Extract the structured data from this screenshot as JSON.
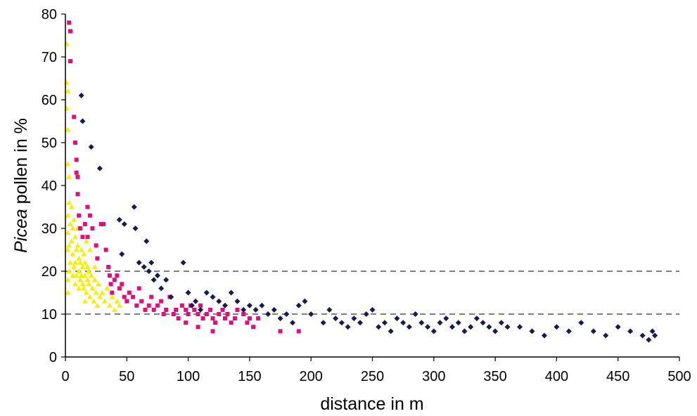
{
  "chart_data": {
    "type": "scatter",
    "xlabel": "distance in m",
    "ylabel_italic": "Picea",
    "ylabel_rest": " pollen in %",
    "xlim": [
      0,
      500
    ],
    "ylim": [
      0,
      80
    ],
    "x_ticks": [
      0,
      50,
      100,
      150,
      200,
      250,
      300,
      350,
      400,
      450,
      500
    ],
    "y_ticks": [
      0,
      10,
      20,
      30,
      40,
      50,
      60,
      70,
      80
    ],
    "reference_lines": [
      10,
      20
    ],
    "grid": false,
    "legend": "none",
    "series": [
      {
        "marker": "triangle",
        "color": "#f5f000",
        "points": [
          [
            1,
            73
          ],
          [
            1,
            64
          ],
          [
            2,
            62
          ],
          [
            1,
            58
          ],
          [
            2,
            53
          ],
          [
            2,
            45
          ],
          [
            3,
            42
          ],
          [
            3,
            36
          ],
          [
            2,
            33
          ],
          [
            4,
            31
          ],
          [
            2,
            29
          ],
          [
            3,
            26
          ],
          [
            2,
            25
          ],
          [
            4,
            22
          ],
          [
            3,
            20
          ],
          [
            2,
            18
          ],
          [
            2,
            15
          ],
          [
            5,
            35
          ],
          [
            6,
            30
          ],
          [
            5,
            27
          ],
          [
            6,
            24
          ],
          [
            7,
            21
          ],
          [
            7,
            32
          ],
          [
            8,
            28
          ],
          [
            9,
            25
          ],
          [
            8,
            22
          ],
          [
            9,
            19
          ],
          [
            10,
            26
          ],
          [
            11,
            23
          ],
          [
            11,
            20
          ],
          [
            12,
            18
          ],
          [
            12,
            22
          ],
          [
            13,
            19
          ],
          [
            14,
            17
          ],
          [
            14,
            21
          ],
          [
            15,
            24
          ],
          [
            15,
            16
          ],
          [
            16,
            19
          ],
          [
            16,
            22
          ],
          [
            17,
            15
          ],
          [
            18,
            18
          ],
          [
            18,
            21
          ],
          [
            19,
            17
          ],
          [
            20,
            14
          ],
          [
            21,
            19
          ],
          [
            22,
            16
          ],
          [
            23,
            13
          ],
          [
            24,
            18
          ],
          [
            25,
            15
          ],
          [
            26,
            12
          ],
          [
            27,
            17
          ],
          [
            28,
            14
          ],
          [
            30,
            15
          ],
          [
            32,
            13
          ],
          [
            34,
            16
          ],
          [
            36,
            12
          ],
          [
            38,
            14
          ],
          [
            40,
            11
          ],
          [
            42,
            13
          ],
          [
            44,
            12
          ],
          [
            10,
            30
          ],
          [
            13,
            25
          ],
          [
            17,
            27
          ],
          [
            20,
            25
          ],
          [
            24,
            21
          ],
          [
            6,
            19
          ],
          [
            8,
            17
          ],
          [
            11,
            16
          ],
          [
            16,
            13
          ],
          [
            19,
            20
          ]
        ]
      },
      {
        "marker": "square",
        "color": "#e0107a",
        "points": [
          [
            3,
            78
          ],
          [
            4,
            76
          ],
          [
            4,
            69
          ],
          [
            7,
            56
          ],
          [
            8,
            50
          ],
          [
            9,
            46
          ],
          [
            9,
            43
          ],
          [
            10,
            42
          ],
          [
            10,
            38
          ],
          [
            11,
            33
          ],
          [
            12,
            30
          ],
          [
            14,
            28
          ],
          [
            16,
            31
          ],
          [
            18,
            35
          ],
          [
            18,
            28
          ],
          [
            20,
            33
          ],
          [
            22,
            30
          ],
          [
            25,
            26
          ],
          [
            26,
            23
          ],
          [
            29,
            31
          ],
          [
            31,
            31
          ],
          [
            33,
            25
          ],
          [
            35,
            21
          ],
          [
            36,
            19
          ],
          [
            37,
            17
          ],
          [
            38,
            15
          ],
          [
            40,
            18
          ],
          [
            42,
            19
          ],
          [
            44,
            16
          ],
          [
            46,
            17
          ],
          [
            48,
            14
          ],
          [
            50,
            13
          ],
          [
            52,
            15
          ],
          [
            55,
            14
          ],
          [
            58,
            12
          ],
          [
            60,
            16
          ],
          [
            62,
            13
          ],
          [
            65,
            11
          ],
          [
            68,
            12
          ],
          [
            70,
            14
          ],
          [
            72,
            11
          ],
          [
            75,
            12
          ],
          [
            78,
            13
          ],
          [
            80,
            10
          ],
          [
            82,
            11
          ],
          [
            85,
            14
          ],
          [
            88,
            10
          ],
          [
            90,
            11
          ],
          [
            92,
            9
          ],
          [
            95,
            12
          ],
          [
            98,
            11
          ],
          [
            100,
            10
          ],
          [
            102,
            12
          ],
          [
            105,
            11
          ],
          [
            108,
            10
          ],
          [
            110,
            12
          ],
          [
            112,
            9
          ],
          [
            115,
            10
          ],
          [
            118,
            11
          ],
          [
            120,
            9
          ],
          [
            122,
            8
          ],
          [
            125,
            10
          ],
          [
            128,
            11
          ],
          [
            130,
            9
          ],
          [
            132,
            10
          ],
          [
            135,
            8
          ],
          [
            138,
            9
          ],
          [
            140,
            11
          ],
          [
            145,
            10
          ],
          [
            148,
            8
          ],
          [
            150,
            9
          ],
          [
            153,
            7
          ],
          [
            157,
            9
          ],
          [
            175,
            6
          ],
          [
            190,
            6
          ],
          [
            98,
            8
          ],
          [
            108,
            7
          ],
          [
            120,
            6
          ]
        ]
      },
      {
        "marker": "diamond",
        "color": "#1a1a4e",
        "points": [
          [
            13,
            61
          ],
          [
            14,
            55
          ],
          [
            21,
            49
          ],
          [
            28,
            44
          ],
          [
            44,
            32
          ],
          [
            46,
            24
          ],
          [
            48,
            31
          ],
          [
            56,
            35
          ],
          [
            57,
            30
          ],
          [
            60,
            22
          ],
          [
            64,
            21
          ],
          [
            66,
            27
          ],
          [
            68,
            20
          ],
          [
            70,
            22
          ],
          [
            72,
            18
          ],
          [
            75,
            19
          ],
          [
            78,
            16
          ],
          [
            82,
            18
          ],
          [
            86,
            14
          ],
          [
            96,
            22
          ],
          [
            100,
            15
          ],
          [
            103,
            12
          ],
          [
            106,
            13
          ],
          [
            110,
            11
          ],
          [
            115,
            15
          ],
          [
            120,
            14
          ],
          [
            125,
            13
          ],
          [
            130,
            12
          ],
          [
            135,
            15
          ],
          [
            140,
            13
          ],
          [
            145,
            11
          ],
          [
            150,
            12
          ],
          [
            155,
            11
          ],
          [
            160,
            12
          ],
          [
            165,
            10
          ],
          [
            170,
            11
          ],
          [
            175,
            9
          ],
          [
            180,
            10
          ],
          [
            185,
            8
          ],
          [
            190,
            12
          ],
          [
            195,
            13
          ],
          [
            200,
            10
          ],
          [
            210,
            8
          ],
          [
            215,
            11
          ],
          [
            220,
            9
          ],
          [
            225,
            8
          ],
          [
            230,
            7
          ],
          [
            235,
            9
          ],
          [
            240,
            8
          ],
          [
            245,
            10
          ],
          [
            250,
            11
          ],
          [
            255,
            7
          ],
          [
            260,
            8
          ],
          [
            265,
            6
          ],
          [
            270,
            9
          ],
          [
            275,
            8
          ],
          [
            280,
            7
          ],
          [
            285,
            10
          ],
          [
            290,
            8
          ],
          [
            295,
            7
          ],
          [
            300,
            6
          ],
          [
            305,
            8
          ],
          [
            310,
            9
          ],
          [
            315,
            7
          ],
          [
            320,
            8
          ],
          [
            325,
            6
          ],
          [
            330,
            7
          ],
          [
            335,
            9
          ],
          [
            340,
            8
          ],
          [
            345,
            7
          ],
          [
            350,
            6
          ],
          [
            355,
            8
          ],
          [
            360,
            7
          ],
          [
            370,
            7
          ],
          [
            380,
            6
          ],
          [
            390,
            5
          ],
          [
            400,
            7
          ],
          [
            410,
            6
          ],
          [
            420,
            8
          ],
          [
            430,
            6
          ],
          [
            440,
            5
          ],
          [
            450,
            7
          ],
          [
            460,
            6
          ],
          [
            470,
            5
          ],
          [
            475,
            4
          ],
          [
            478,
            6
          ],
          [
            480,
            5
          ]
        ]
      }
    ]
  }
}
